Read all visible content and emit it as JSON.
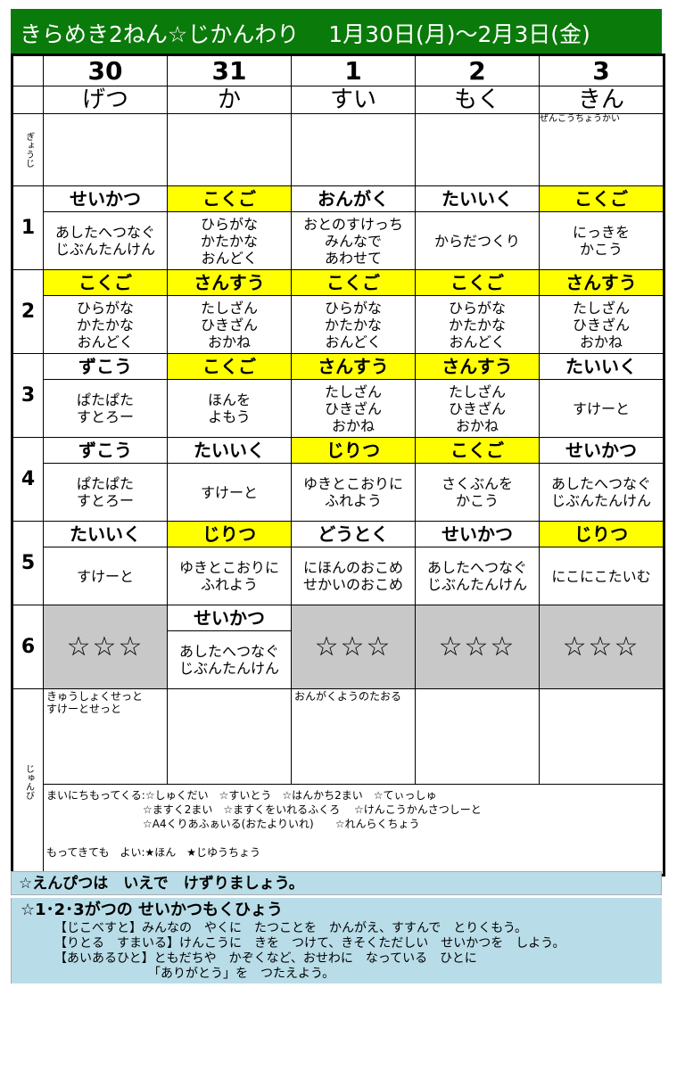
{
  "title": "きらめき2ねん☆じかんわり　 1月30日(月)～2月3日(金)",
  "dates": [
    "30",
    "31",
    "1",
    "2",
    "3"
  ],
  "weekdays": [
    "げつ",
    "か",
    "すい",
    "もく",
    "きん"
  ],
  "events_label": "ぎょうじ",
  "events": [
    "",
    "",
    "",
    "",
    "ぜんこうちょうかい"
  ],
  "colors": {
    "title_bg": "#0a7a0a",
    "highlight": "#ffff00",
    "gray": "#c8c8c8",
    "note_bg": "#b8dde8"
  },
  "periods": [
    {
      "num": "1",
      "cells": [
        {
          "subject": "せいかつ",
          "highlight": false,
          "content": "あしたへつなぐ\nじぶんたんけん"
        },
        {
          "subject": "こくご",
          "highlight": true,
          "content": "ひらがな\nかたかな\nおんどく"
        },
        {
          "subject": "おんがく",
          "highlight": false,
          "content": "おとのすけっち\nみんなで\nあわせて"
        },
        {
          "subject": "たいいく",
          "highlight": false,
          "content": "からだつくり"
        },
        {
          "subject": "こくご",
          "highlight": true,
          "content": "にっきを\nかこう"
        }
      ]
    },
    {
      "num": "2",
      "cells": [
        {
          "subject": "こくご",
          "highlight": true,
          "content": "ひらがな\nかたかな\nおんどく"
        },
        {
          "subject": "さんすう",
          "highlight": true,
          "content": "たしざん\nひきざん\nおかね"
        },
        {
          "subject": "こくご",
          "highlight": true,
          "content": "ひらがな\nかたかな\nおんどく"
        },
        {
          "subject": "こくご",
          "highlight": true,
          "content": "ひらがな\nかたかな\nおんどく"
        },
        {
          "subject": "さんすう",
          "highlight": true,
          "content": "たしざん\nひきざん\nおかね"
        }
      ]
    },
    {
      "num": "3",
      "cells": [
        {
          "subject": "ずこう",
          "highlight": false,
          "content": "ぱたぱた\nすとろー"
        },
        {
          "subject": "こくご",
          "highlight": true,
          "content": "ほんを\nよもう"
        },
        {
          "subject": "さんすう",
          "highlight": true,
          "content": "たしざん\nひきざん\nおかね"
        },
        {
          "subject": "さんすう",
          "highlight": true,
          "content": "たしざん\nひきざん\nおかね"
        },
        {
          "subject": "たいいく",
          "highlight": false,
          "content": "すけーと"
        }
      ]
    },
    {
      "num": "4",
      "cells": [
        {
          "subject": "ずこう",
          "highlight": false,
          "content": "ぱたぱた\nすとろー"
        },
        {
          "subject": "たいいく",
          "highlight": false,
          "content": "すけーと"
        },
        {
          "subject": "じりつ",
          "highlight": true,
          "content": "ゆきとこおりに\nふれよう"
        },
        {
          "subject": "こくご",
          "highlight": true,
          "content": "さくぶんを\nかこう"
        },
        {
          "subject": "せいかつ",
          "highlight": false,
          "content": "あしたへつなぐ\nじぶんたんけん"
        }
      ]
    },
    {
      "num": "5",
      "cells": [
        {
          "subject": "たいいく",
          "highlight": false,
          "content": "すけーと"
        },
        {
          "subject": "じりつ",
          "highlight": true,
          "content": "ゆきとこおりに\nふれよう"
        },
        {
          "subject": "どうとく",
          "highlight": false,
          "content": "にほんのおこめ\nせかいのおこめ"
        },
        {
          "subject": "せいかつ",
          "highlight": false,
          "content": "あしたへつなぐ\nじぶんたんけん"
        },
        {
          "subject": "じりつ",
          "highlight": true,
          "content": "にこにこたいむ"
        }
      ]
    },
    {
      "num": "6",
      "cells": [
        {
          "stars": "☆☆☆"
        },
        {
          "subject": "せいかつ",
          "highlight": false,
          "content": "あしたへつなぐ\nじぶんたんけん"
        },
        {
          "stars": "☆☆☆"
        },
        {
          "stars": "☆☆☆"
        },
        {
          "stars": "☆☆☆"
        }
      ]
    }
  ],
  "junbi_label": "じゅんび",
  "junbi": [
    "きゅうしょくせっと\nすけーとせっと",
    "",
    "おんがくようのたおる",
    "",
    ""
  ],
  "notes": [
    "まいにちもってくる:☆しゅくだい　☆すいとう　☆はんかち2まい　☆てぃっしゅ",
    "　　　　　　　　　☆ますく2まい　☆ますくをいれるふくろ　 ☆けんこうかんさつしーと",
    "　　　　　　　　　☆A4くりあふぁいる(おたよりいれ)　　☆れんらくちょう",
    "",
    "もってきても　よい:★ほん　★じゆうちょう"
  ],
  "banner1": "☆えんぴつは　いえで　けずりましょう。",
  "banner2": {
    "heading": "☆1･2･3がつの せいかつもくひょう",
    "lines": [
      "【じこべすと】みんなの　やくに　たつことを　かんがえ、すすんで　とりくもう。",
      "【りとる　すまいる】けんこうに　きを　つけて、きそくただしい　せいかつを　しよう。",
      "【あいあるひと】ともだちや　かぞくなど、おせわに　なっている　ひとに",
      "　　　　　　　　「ありがとう」を　つたえよう。"
    ]
  }
}
